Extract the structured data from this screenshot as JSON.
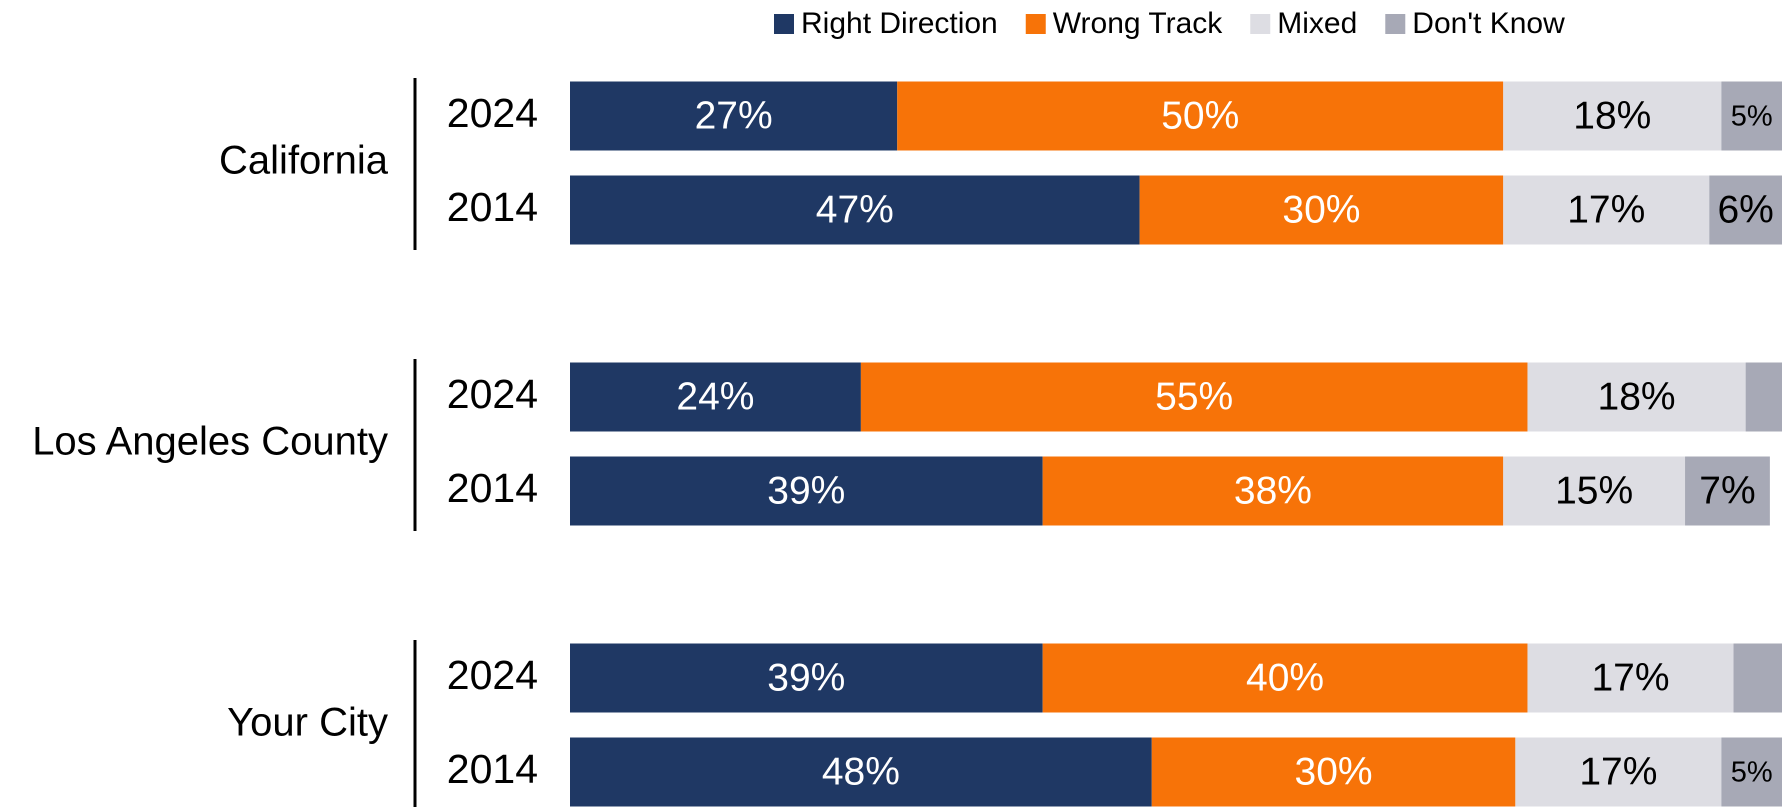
{
  "chart_data": {
    "type": "stacked-barh",
    "groups": [
      "California",
      "Los Angeles County",
      "Your City"
    ],
    "categories": [
      "2024",
      "2014",
      "2024",
      "2014",
      "2024",
      "2014"
    ],
    "xlim": [
      0,
      100
    ],
    "legend": "top",
    "series": [
      {
        "name": "Right Direction",
        "color": "#1f3864",
        "values": [
          27,
          47,
          24,
          39,
          39,
          48
        ],
        "value_labels": [
          "27%",
          "47%",
          "24%",
          "39%",
          "39%",
          "48%"
        ]
      },
      {
        "name": "Wrong Track",
        "color": "#f77308",
        "values": [
          50,
          30,
          55,
          38,
          40,
          30
        ],
        "value_labels": [
          "50%",
          "30%",
          "55%",
          "38%",
          "40%",
          "30%"
        ]
      },
      {
        "name": "Mixed",
        "color": "#dddde3",
        "values": [
          18,
          17,
          18,
          15,
          17,
          17
        ],
        "value_labels": [
          "18%",
          "17%",
          "18%",
          "15%",
          "17%",
          "17%"
        ]
      },
      {
        "name": "Don't Know",
        "color": "#a7a9b6",
        "values": [
          5,
          6,
          3,
          7,
          4,
          5
        ],
        "value_labels": [
          "5%",
          "6%",
          null,
          "7%",
          null,
          "5%"
        ]
      }
    ]
  }
}
